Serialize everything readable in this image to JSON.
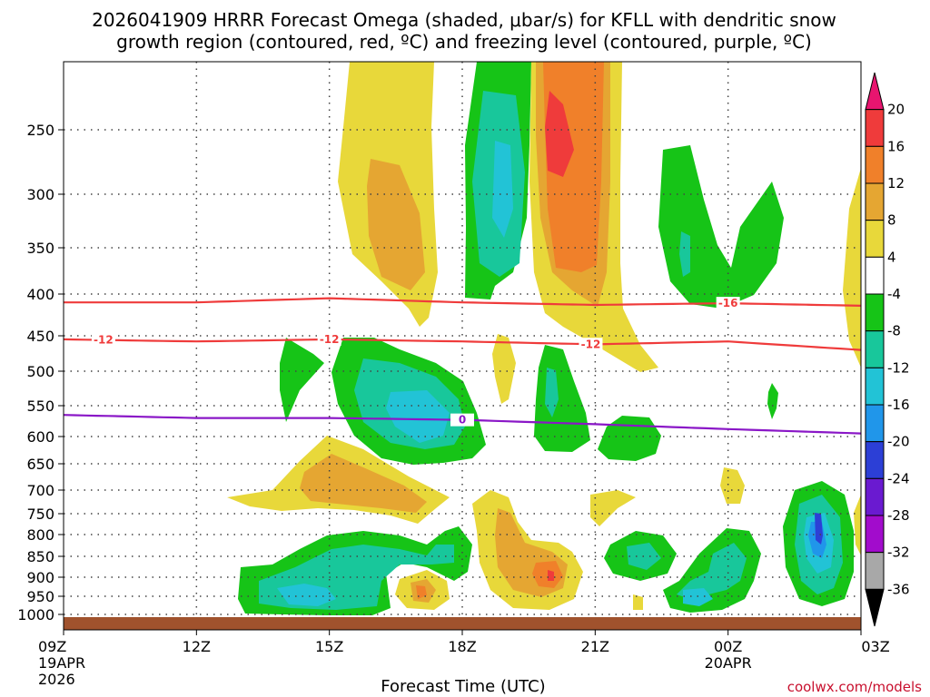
{
  "chart_data": {
    "type": "heatmap",
    "title_line1": "2026041909 HRRR Forecast Omega (shaded, μbar/s) for KFLL with dendritic snow",
    "title_line2": "growth region (contoured, red, ºC) and freezing level (contoured, purple, ºC)",
    "xlabel": "Forecast Time (UTC)",
    "credit": "coolwx.com/models",
    "x_hours": [
      0,
      3,
      6,
      9,
      12,
      15,
      18
    ],
    "x_ticks": [
      {
        "hour": 0,
        "label": "09Z",
        "sub1": "19APR",
        "sub2": "2026"
      },
      {
        "hour": 3,
        "label": "12Z",
        "sub1": "",
        "sub2": ""
      },
      {
        "hour": 6,
        "label": "15Z",
        "sub1": "",
        "sub2": ""
      },
      {
        "hour": 9,
        "label": "18Z",
        "sub1": "",
        "sub2": ""
      },
      {
        "hour": 12,
        "label": "21Z",
        "sub1": "",
        "sub2": ""
      },
      {
        "hour": 15,
        "label": "00Z",
        "sub1": "20APR",
        "sub2": ""
      },
      {
        "hour": 18,
        "label": "03Z",
        "sub1": "",
        "sub2": ""
      }
    ],
    "y_ticks": [
      250,
      300,
      350,
      400,
      450,
      500,
      550,
      600,
      650,
      700,
      750,
      800,
      850,
      900,
      950,
      1000
    ],
    "ylim": [
      200,
      1013
    ],
    "colorbar": {
      "labels": [
        "20",
        "16",
        "12",
        "8",
        "4",
        "-4",
        "-8",
        "-12",
        "-16",
        "-20",
        "-24",
        "-28",
        "-32",
        "-36"
      ],
      "colors": [
        "#e8156f",
        "#ef3b3b",
        "#f0802a",
        "#e5a632",
        "#e8d83a",
        "#ffffff",
        "#16c417",
        "#18c79b",
        "#22c3d6",
        "#2096ea",
        "#2c3fd6",
        "#6a1ad0",
        "#a20ccc",
        "#a8a8a8",
        "#000000"
      ]
    },
    "contours": [
      {
        "name": "-16",
        "label": "-16",
        "color": "#ef3b3b",
        "hours": [
          0,
          3,
          6,
          9,
          12,
          15,
          18
        ],
        "pressure": [
          410,
          410,
          405,
          410,
          413,
          411,
          414
        ]
      },
      {
        "name": "-12",
        "label": "-12",
        "color": "#ef3b3b",
        "hours": [
          0,
          3,
          6,
          9,
          12,
          15,
          18
        ],
        "pressure": [
          455,
          458,
          455,
          458,
          462,
          458,
          470
        ]
      },
      {
        "name": "0",
        "label": "0",
        "color": "#8a17c7",
        "hours": [
          0,
          3,
          6,
          9,
          12,
          15,
          18
        ],
        "pressure": [
          565,
          570,
          570,
          573,
          580,
          588,
          595
        ]
      }
    ]
  }
}
